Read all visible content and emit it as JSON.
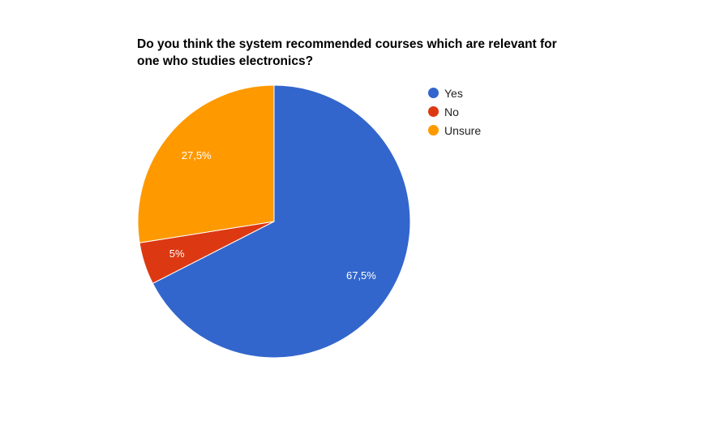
{
  "chart_data": {
    "type": "pie",
    "title_lines": [
      "Do you think the system recommended courses which are relevant for",
      "one who studies electronics?"
    ],
    "slices": [
      {
        "label": "Yes",
        "value": 67.5,
        "display": "67,5%",
        "color": "#3366cc"
      },
      {
        "label": "No",
        "value": 5,
        "display": "5%",
        "color": "#dc3912"
      },
      {
        "label": "Unsure",
        "value": 27.5,
        "display": "27,5%",
        "color": "#ff9900"
      }
    ],
    "legend_position": "right"
  }
}
